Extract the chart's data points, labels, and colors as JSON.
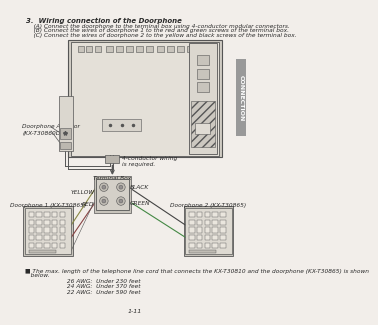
{
  "bg_color": "#f2eeea",
  "sidebar_color": "#999999",
  "sidebar_text": "CONNECTION",
  "title_text": "3.  Wiring connection of the Doorphone",
  "bullet_a": "    (A) Connect the doorphone to the terminal box using 4-conductor modular connectors.",
  "bullet_b": "    (B) Connect the wires of doorphone 1 to the red and green screws of the terminal box.",
  "bullet_c": "    (C) Connect the wires of doorphone 2 to the yellow and black screws of the terminal box.",
  "label_doorphone_adaptor": "Doorphone Adaptor\n(KX-T30860D)",
  "label_4conductor": "4-conductor wiring\nis required.",
  "label_doorphone1": "Doorphone 1 (KX-T30865)",
  "label_terminal_box": "Terminal Box",
  "label_doorphone2": "Doorphone 2 (KX-T30865)",
  "label_yellow": "YELLOW",
  "label_red": "RED",
  "label_black": "BLACK",
  "label_green": "GREEN",
  "awg_note": "■ The max. length of the telephone line cord that connects the KX-T30810 and the doorphone (KX-T30865) is shown",
  "awg_note2": "   below.",
  "awg_line1": "         26 AWG:  Under 230 feet",
  "awg_line2": "         24 AWG:  Under 370 feet",
  "awg_line3": "         22 AWG:  Under 590 feet",
  "footer_text": "1-11",
  "lc": "#555555",
  "tc": "#2a2a2a",
  "device_fill": "#e4e0d8",
  "device_edge": "#555555",
  "panel_fill": "#d8d4cc",
  "port_fill": "#c8c4bc",
  "hatch_fill": "#ccc8c0",
  "tb_fill": "#d4d0c8",
  "dp_fill": "#dedad2",
  "btn_fill": "#eae6de"
}
